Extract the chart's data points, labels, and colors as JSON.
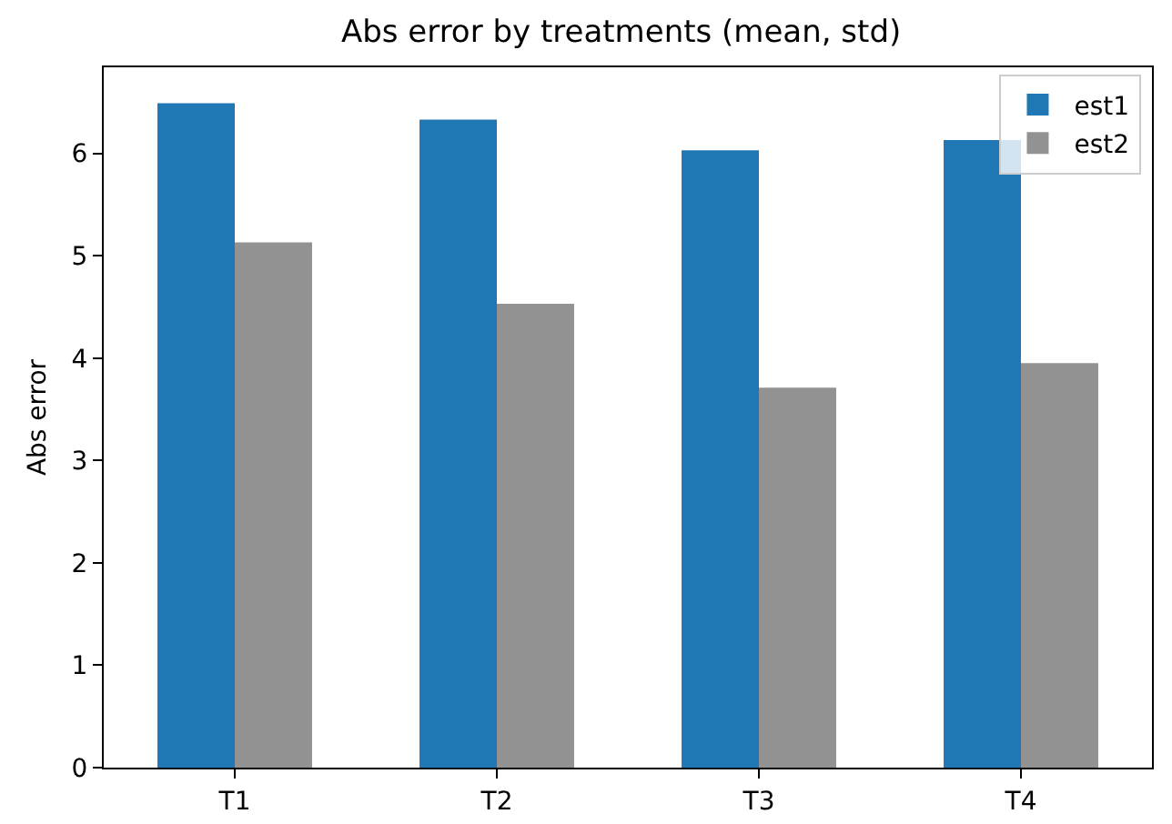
{
  "chart_data": {
    "type": "bar",
    "title": "Abs error by treatments (mean, std)",
    "ylabel": "Abs error",
    "categories": [
      "T1",
      "T2",
      "T3",
      "T4"
    ],
    "series": [
      {
        "name": "est1",
        "color": "#1f77b4",
        "values": [
          6.49,
          6.33,
          6.03,
          6.13
        ]
      },
      {
        "name": "est2",
        "color": "#929292",
        "values": [
          5.13,
          4.53,
          3.71,
          3.95
        ]
      }
    ],
    "ylim": [
      0,
      6.84
    ],
    "yticks": [
      0,
      1,
      2,
      3,
      4,
      5,
      6
    ],
    "grid": false,
    "legend": "top right"
  }
}
